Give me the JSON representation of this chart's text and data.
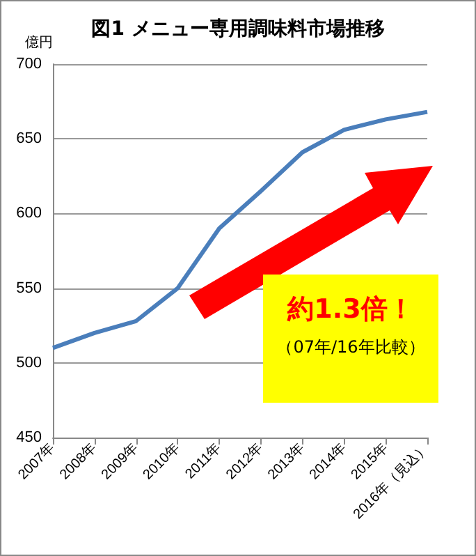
{
  "chart_data": {
    "type": "line",
    "title": "図1 メニュー専用調味料市場推移",
    "ylabel": "億円",
    "categories": [
      "2007年",
      "2008年",
      "2009年",
      "2010年",
      "2011年",
      "2012年",
      "2013年",
      "2014年",
      "2015年",
      "2016年（見込）"
    ],
    "series": [
      {
        "color": "#4a7ebb",
        "values": [
          510,
          520,
          528,
          550,
          590,
          615,
          641,
          656,
          663,
          668
        ]
      }
    ],
    "ylim": [
      450,
      700
    ],
    "yticks": [
      450,
      500,
      550,
      600,
      650,
      700
    ],
    "grid": "y",
    "marker": "none",
    "line_style": "solid",
    "annotations": [
      "約1.3倍！",
      "（07年/16年比較）"
    ]
  }
}
